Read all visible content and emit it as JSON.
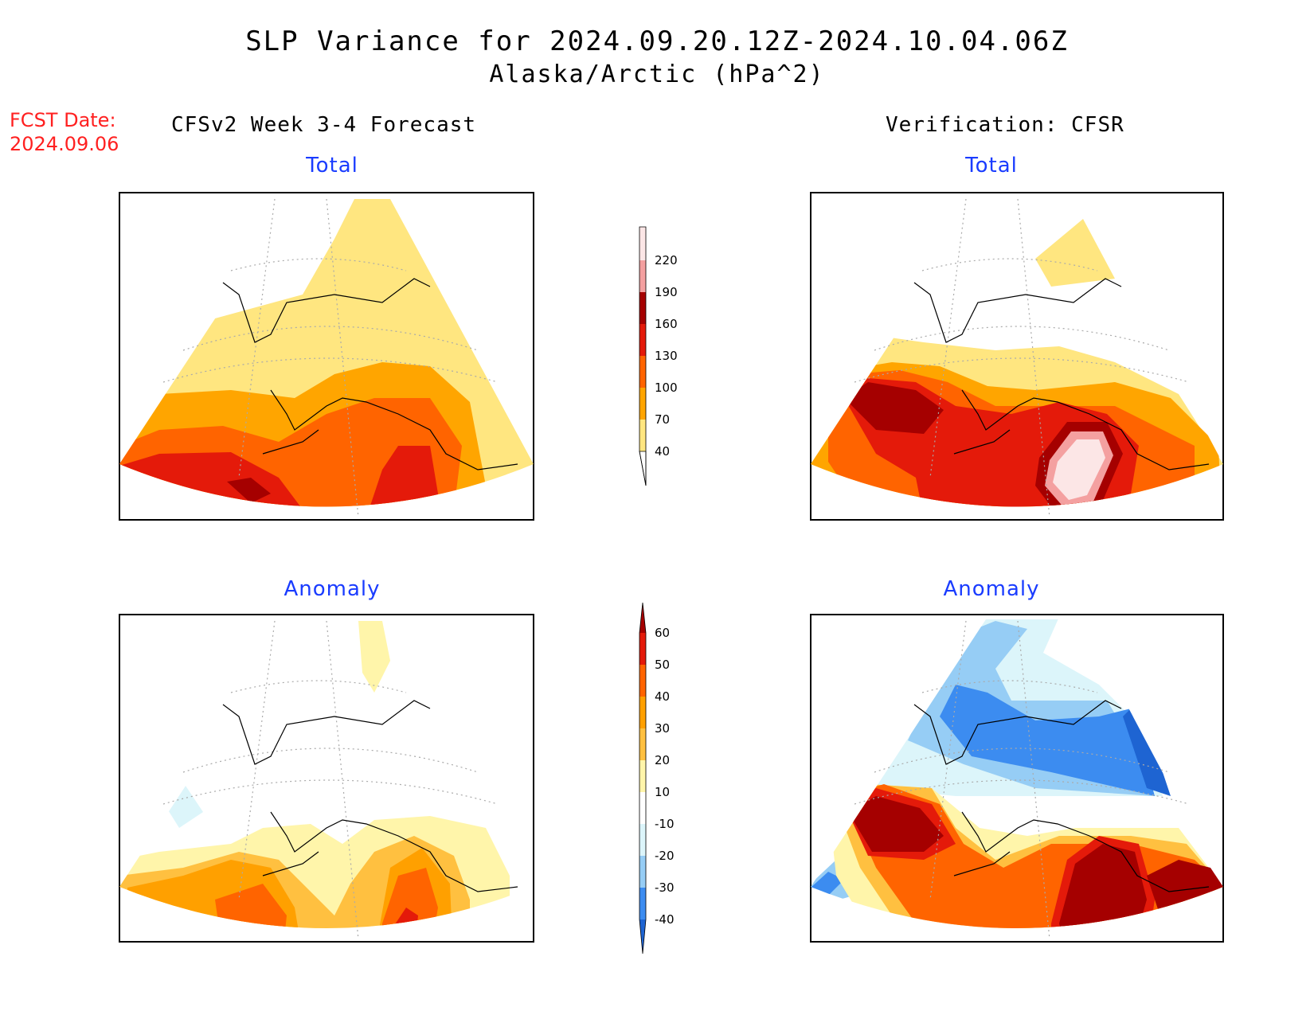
{
  "title": {
    "line1": "SLP Variance for 2024.09.20.12Z-2024.10.04.06Z",
    "line2": "Alaska/Arctic (hPa^2)"
  },
  "forecast_date": {
    "label": "FCST Date:",
    "value": "2024.09.06"
  },
  "columns": {
    "left_header": "CFSv2 Week 3-4 Forecast",
    "right_header": "Verification: CFSR"
  },
  "panels": {
    "forecast_total": {
      "title": "Total"
    },
    "verification_total": {
      "title": "Total"
    },
    "forecast_anomaly": {
      "title": "Anomaly"
    },
    "verification_anomaly": {
      "title": "Anomaly"
    }
  },
  "colorbars": {
    "total": {
      "labels": [
        "40",
        "70",
        "100",
        "130",
        "160",
        "190",
        "220"
      ],
      "colors": [
        "#ffe680",
        "#ffa500",
        "#ff6400",
        "#e41a0a",
        "#a50000",
        "#f4a0a0",
        "#fce6e6"
      ]
    },
    "anomaly": {
      "labels": [
        "-40",
        "-30",
        "-20",
        "-10",
        "10",
        "20",
        "30",
        "40",
        "50",
        "60"
      ],
      "colors": [
        "#1e64d2",
        "#3c8cf0",
        "#96cdf5",
        "#dcf5fa",
        "#ffffff",
        "#fff5aa",
        "#ffc040",
        "#ffa000",
        "#ff6400",
        "#e41a0a",
        "#a50000"
      ]
    }
  }
}
